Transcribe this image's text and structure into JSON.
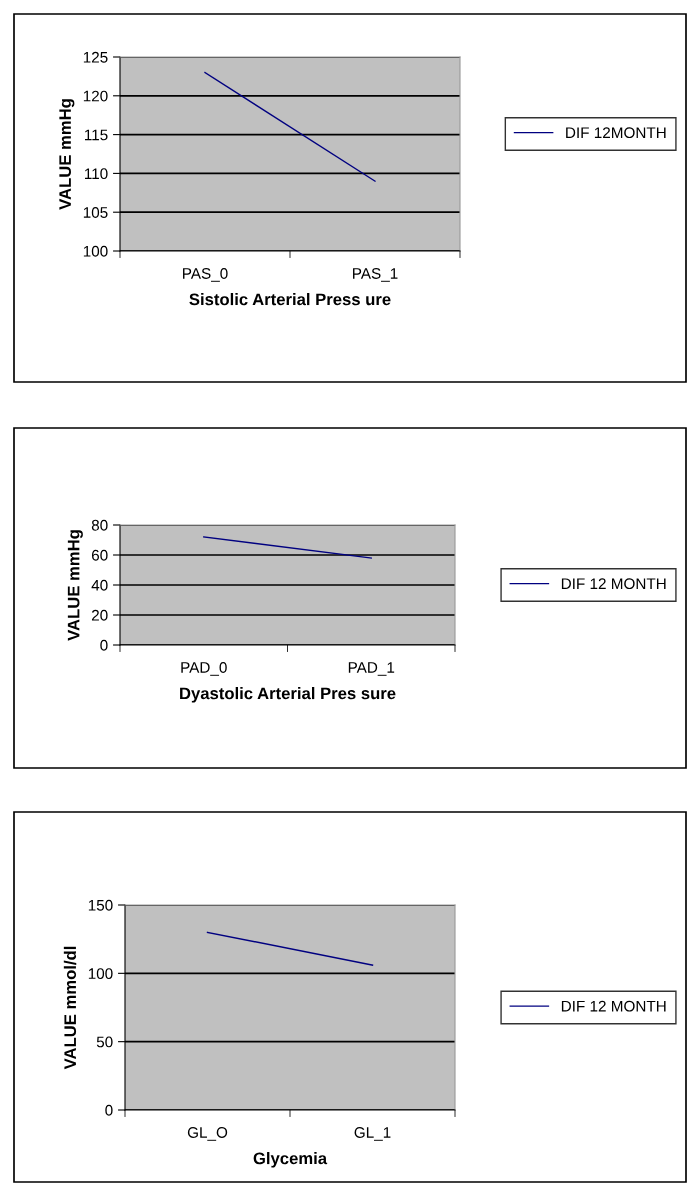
{
  "chart_data": [
    {
      "type": "line",
      "xlabel": "Sistolic Arterial Press ure",
      "ylabel": "VALUE mmHg",
      "categories": [
        "PAS_0",
        "PAS_1"
      ],
      "series": [
        {
          "name": "DIF 12MONTH",
          "color": "#000080",
          "values": [
            123,
            109
          ]
        }
      ],
      "ylim": [
        100,
        125
      ],
      "yticks": [
        100,
        105,
        110,
        115,
        120,
        125
      ],
      "grid": "y",
      "legend": "right",
      "marker": "none",
      "line_style": "solid"
    },
    {
      "type": "line",
      "xlabel": "Dyastolic Arterial Pres sure",
      "ylabel": "VALUE mmHg",
      "categories": [
        "PAD_0",
        "PAD_1"
      ],
      "series": [
        {
          "name": "DIF 12 MONTH",
          "color": "#000080",
          "values": [
            72,
            58
          ]
        }
      ],
      "ylim": [
        0,
        80
      ],
      "yticks": [
        0,
        20,
        40,
        60,
        80
      ],
      "grid": "y",
      "legend": "right",
      "marker": "none",
      "line_style": "solid"
    },
    {
      "type": "line",
      "xlabel": "Glycemia",
      "ylabel": "VALUE mmol/dl",
      "categories": [
        "GL_O",
        "GL_1"
      ],
      "series": [
        {
          "name": "DIF 12 MONTH",
          "color": "#000080",
          "values": [
            130,
            106
          ]
        }
      ],
      "ylim": [
        0,
        150
      ],
      "yticks": [
        0,
        50,
        100,
        150
      ],
      "grid": "y",
      "legend": "right",
      "marker": "none",
      "line_style": "solid"
    }
  ]
}
